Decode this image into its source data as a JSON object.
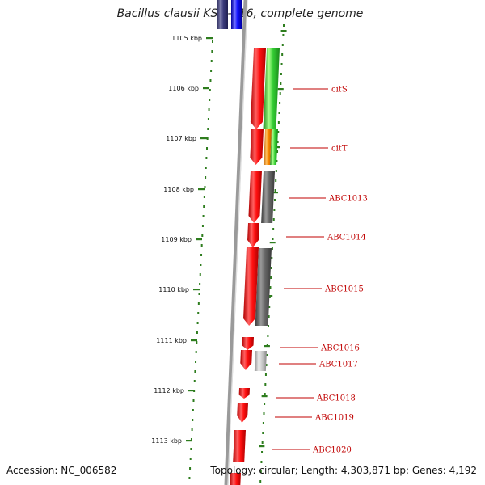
{
  "title": "Bacillus clausii KSM-K16, complete genome",
  "footer": {
    "accession": "Accession: NC_006582",
    "summary": "Topology: circular; Length: 4,303,871 bp; Genes: 4,192"
  },
  "ticks": [
    "1105 kbp",
    "1106 kbp",
    "1107 kbp",
    "1108 kbp",
    "1109 kbp",
    "1110 kbp",
    "1111 kbp",
    "1112 kbp",
    "1113 kbp"
  ],
  "genes": [
    "citS",
    "citT",
    "ABC1013",
    "ABC1014",
    "ABC1015",
    "ABC1016",
    "ABC1017",
    "ABC1018",
    "ABC1019",
    "ABC1020"
  ],
  "colors": {
    "backbone": "#888888",
    "tick": "#2e7d1e",
    "forward_gene": "#ff1010",
    "label": "#c00000",
    "cog_green": "#33cc33",
    "cog_orange": "#ff8c00",
    "cog_dark_gray": "#666666",
    "cog_light_gray": "#cccccc",
    "cog_blue": "#1010ff",
    "cog_navy": "#3a3a7a"
  }
}
